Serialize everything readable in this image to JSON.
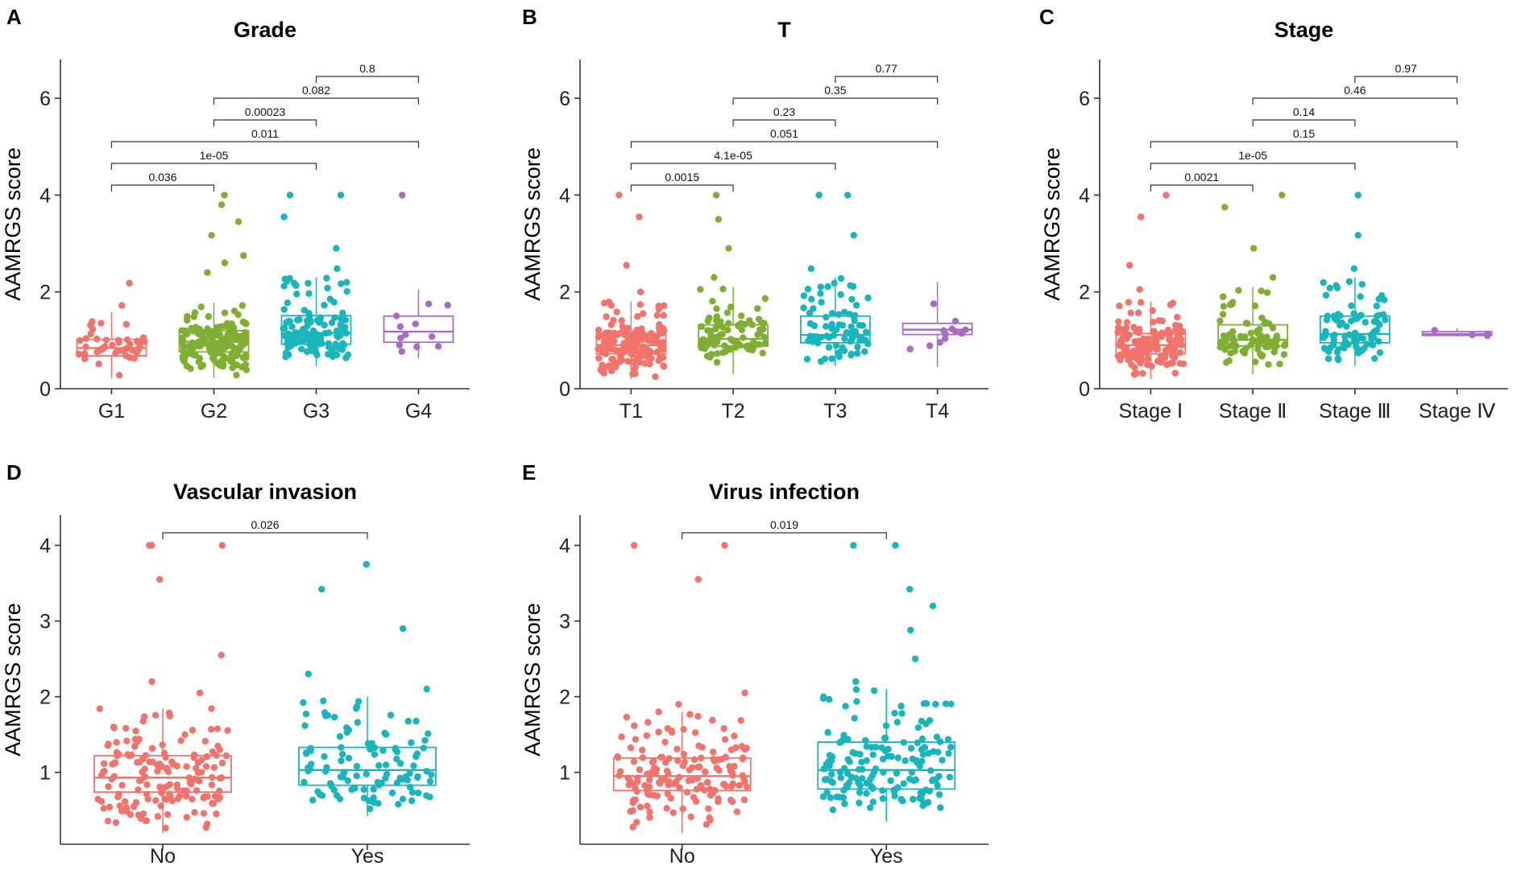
{
  "colors": {
    "red": "#F1736B",
    "green": "#7FAE33",
    "teal": "#18B5BD",
    "purple": "#A66CC2"
  },
  "chart_data": [
    {
      "panel": "A",
      "type": "box",
      "title": "Grade",
      "ylabel": "AAMRGS score",
      "ylim": [
        0,
        6.8
      ],
      "yticks": [
        0,
        2,
        4,
        6
      ],
      "categories": [
        "G1",
        "G2",
        "G3",
        "G4"
      ],
      "colors": [
        "#F1736B",
        "#7FAE33",
        "#18B5BD",
        "#A66CC2"
      ],
      "boxes": [
        {
          "min": 0.22,
          "q1": 0.68,
          "median": 0.84,
          "q3": 1.02,
          "max": 1.58,
          "n": 45,
          "outliers": [
            2.18,
            1.72
          ]
        },
        {
          "min": 0.22,
          "q1": 0.76,
          "median": 0.97,
          "q3": 1.2,
          "max": 1.78,
          "n": 170,
          "outliers": [
            2.4,
            2.6,
            2.75,
            3.17,
            3.45,
            3.8,
            4.0
          ]
        },
        {
          "min": 0.47,
          "q1": 0.92,
          "median": 1.15,
          "q3": 1.51,
          "max": 2.3,
          "n": 130,
          "outliers": [
            2.48,
            2.9,
            3.55,
            4.0,
            4.0
          ]
        },
        {
          "min": 0.63,
          "q1": 0.96,
          "median": 1.18,
          "q3": 1.5,
          "max": 2.05,
          "n": 12,
          "outliers": [
            4.0
          ]
        }
      ],
      "comparisons": [
        {
          "from": "G3",
          "to": "G4",
          "label": "0.8"
        },
        {
          "from": "G2",
          "to": "G4",
          "label": "0.082"
        },
        {
          "from": "G2",
          "to": "G3",
          "label": "0.00023"
        },
        {
          "from": "G1",
          "to": "G4",
          "label": "0.011"
        },
        {
          "from": "G1",
          "to": "G3",
          "label": "1e-05"
        },
        {
          "from": "G1",
          "to": "G2",
          "label": "0.036"
        }
      ]
    },
    {
      "panel": "B",
      "type": "box",
      "title": "T",
      "ylabel": "AAMRGS score",
      "ylim": [
        0,
        6.8
      ],
      "yticks": [
        0,
        2,
        4,
        6
      ],
      "categories": [
        "T1",
        "T2",
        "T3",
        "T4"
      ],
      "colors": [
        "#F1736B",
        "#7FAE33",
        "#18B5BD",
        "#A66CC2"
      ],
      "boxes": [
        {
          "min": 0.2,
          "q1": 0.72,
          "median": 0.9,
          "q3": 1.14,
          "max": 1.8,
          "n": 180,
          "outliers": [
            2.0,
            2.55,
            3.55,
            4.0
          ]
        },
        {
          "min": 0.3,
          "q1": 0.88,
          "median": 1.03,
          "q3": 1.32,
          "max": 2.1,
          "n": 90,
          "outliers": [
            2.3,
            2.9,
            3.5,
            4.0
          ]
        },
        {
          "min": 0.47,
          "q1": 0.95,
          "median": 1.11,
          "q3": 1.5,
          "max": 2.3,
          "n": 80,
          "outliers": [
            2.48,
            3.17,
            4.0,
            4.0
          ]
        },
        {
          "min": 0.45,
          "q1": 1.12,
          "median": 1.22,
          "q3": 1.35,
          "max": 2.2,
          "n": 12,
          "outliers": []
        }
      ],
      "comparisons": [
        {
          "from": "T3",
          "to": "T4",
          "label": "0.77"
        },
        {
          "from": "T2",
          "to": "T4",
          "label": "0.35"
        },
        {
          "from": "T2",
          "to": "T3",
          "label": "0.23"
        },
        {
          "from": "T1",
          "to": "T4",
          "label": "0.051"
        },
        {
          "from": "T1",
          "to": "T3",
          "label": "4.1e-05"
        },
        {
          "from": "T1",
          "to": "T2",
          "label": "0.0015"
        }
      ]
    },
    {
      "panel": "C",
      "type": "box",
      "title": "Stage",
      "ylabel": "AAMRGS score",
      "ylim": [
        0,
        6.8
      ],
      "yticks": [
        0,
        2,
        4,
        6
      ],
      "categories": [
        "Stage Ⅰ",
        "Stage Ⅱ",
        "Stage Ⅲ",
        "Stage Ⅳ"
      ],
      "colors": [
        "#F1736B",
        "#7FAE33",
        "#18B5BD",
        "#A66CC2"
      ],
      "boxes": [
        {
          "min": 0.2,
          "q1": 0.72,
          "median": 0.9,
          "q3": 1.14,
          "max": 1.8,
          "n": 170,
          "outliers": [
            2.05,
            2.55,
            3.55,
            4.0
          ]
        },
        {
          "min": 0.3,
          "q1": 0.88,
          "median": 1.01,
          "q3": 1.32,
          "max": 2.1,
          "n": 85,
          "outliers": [
            2.3,
            2.9,
            3.75,
            4.0
          ]
        },
        {
          "min": 0.47,
          "q1": 0.95,
          "median": 1.13,
          "q3": 1.5,
          "max": 2.3,
          "n": 85,
          "outliers": [
            2.48,
            3.17,
            4.0
          ]
        },
        {
          "min": 1.08,
          "q1": 1.1,
          "median": 1.13,
          "q3": 1.18,
          "max": 1.25,
          "n": 4,
          "outliers": []
        }
      ],
      "comparisons": [
        {
          "from": "Stage Ⅲ",
          "to": "Stage Ⅳ",
          "label": "0.97"
        },
        {
          "from": "Stage Ⅱ",
          "to": "Stage Ⅳ",
          "label": "0.46"
        },
        {
          "from": "Stage Ⅱ",
          "to": "Stage Ⅲ",
          "label": "0.14"
        },
        {
          "from": "Stage Ⅰ",
          "to": "Stage Ⅳ",
          "label": "0.15"
        },
        {
          "from": "Stage Ⅰ",
          "to": "Stage Ⅲ",
          "label": "1e-05"
        },
        {
          "from": "Stage Ⅰ",
          "to": "Stage Ⅱ",
          "label": "0.0021"
        }
      ]
    },
    {
      "panel": "D",
      "type": "box",
      "title": "Vascular invasion",
      "ylabel": "AAMRGS score",
      "ylim": [
        0.05,
        4.4
      ],
      "yticks": [
        1,
        2,
        3,
        4
      ],
      "categories": [
        "No",
        "Yes"
      ],
      "colors": [
        "#F1736B",
        "#18B5BD"
      ],
      "boxes": [
        {
          "min": 0.2,
          "q1": 0.74,
          "median": 0.93,
          "q3": 1.22,
          "max": 1.85,
          "n": 220,
          "outliers": [
            2.05,
            2.2,
            2.55,
            3.55,
            4.0,
            4.0,
            4.0
          ]
        },
        {
          "min": 0.42,
          "q1": 0.83,
          "median": 1.03,
          "q3": 1.33,
          "max": 2.0,
          "n": 110,
          "outliers": [
            2.1,
            2.3,
            2.9,
            3.42,
            3.75
          ]
        }
      ],
      "comparisons": [
        {
          "from": "No",
          "to": "Yes",
          "label": "0.026"
        }
      ]
    },
    {
      "panel": "E",
      "type": "box",
      "title": "Virus infection",
      "ylabel": "AAMRGS score",
      "ylim": [
        0.05,
        4.4
      ],
      "yticks": [
        1,
        2,
        3,
        4
      ],
      "categories": [
        "No",
        "Yes"
      ],
      "colors": [
        "#F1736B",
        "#18B5BD"
      ],
      "boxes": [
        {
          "min": 0.2,
          "q1": 0.76,
          "median": 0.95,
          "q3": 1.19,
          "max": 1.8,
          "n": 170,
          "outliers": [
            1.9,
            2.05,
            3.55,
            4.0,
            4.0
          ]
        },
        {
          "min": 0.35,
          "q1": 0.78,
          "median": 1.03,
          "q3": 1.4,
          "max": 2.1,
          "n": 170,
          "outliers": [
            2.2,
            2.5,
            2.88,
            3.2,
            3.42,
            4.0,
            4.0
          ]
        }
      ],
      "comparisons": [
        {
          "from": "No",
          "to": "Yes",
          "label": "0.019"
        }
      ]
    }
  ]
}
